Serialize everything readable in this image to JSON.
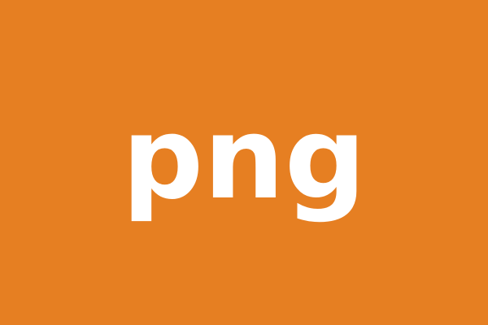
{
  "text": "png",
  "colors": {
    "background": "#E67F22",
    "text": "#FFFFFF"
  }
}
